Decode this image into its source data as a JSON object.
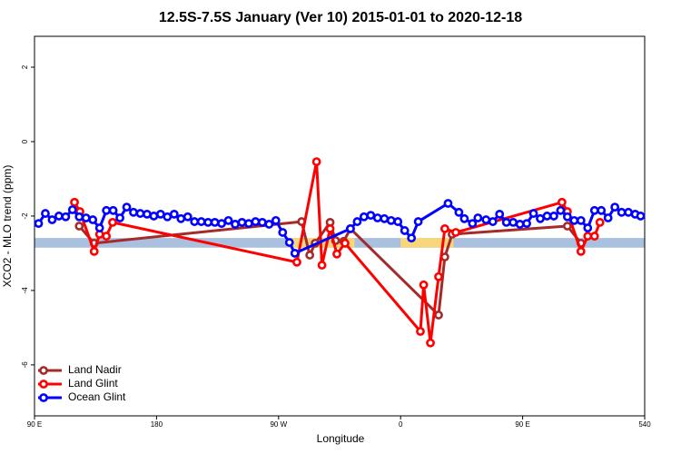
{
  "chart_data": {
    "type": "line",
    "title": "12.5S-7.5S January (Ver 10)   2015-01-01 to 2020-12-18",
    "x_label": "Longitude",
    "y_label": "XCO2 - MLO trend (ppm)",
    "xlim": [
      90,
      540
    ],
    "ylim": [
      -7.37,
      2.83
    ],
    "xticks": [
      {
        "value": 90,
        "label": "90 E"
      },
      180,
      {
        "value": 270,
        "label": "90 W"
      },
      {
        "value": 360,
        "label": "0"
      },
      {
        "value": 450,
        "label": "90 E"
      },
      540
    ],
    "yticks": [
      2,
      0,
      -2,
      -4,
      -6
    ],
    "legend": "bottom-left",
    "band": {
      "ylim": [
        -2.85,
        -2.59
      ],
      "color": "#a9c0de"
    },
    "highlights": {
      "spans": [
        [
          276,
          326
        ],
        [
          360,
          399
        ]
      ],
      "color": "#f7d77a"
    },
    "series": [
      {
        "name": "Land Nadir",
        "color": "#a52a2a",
        "x": [
          123,
          134,
          287,
          293,
          297,
          308,
          312,
          318,
          323,
          388,
          392.6,
          398,
          483,
          493
        ],
        "values": [
          -2.27,
          -2.73,
          -2.15,
          -3.05,
          -2.73,
          -2.17,
          -2.66,
          -2.68,
          -2.34,
          -4.66,
          -3.1,
          -2.49,
          -2.27,
          -2.73
        ]
      },
      {
        "name": "Land Glint",
        "color": "#ff0000",
        "x": [
          119.5,
          123.5,
          134,
          138,
          143,
          147.6,
          283.5,
          298,
          302,
          308,
          313,
          319,
          374.6,
          377,
          382,
          388,
          392.6,
          400.7,
          479,
          483,
          493,
          498,
          503,
          507
        ],
        "values": [
          -1.63,
          -1.88,
          -2.95,
          -2.49,
          -2.54,
          -2.17,
          -3.24,
          -0.54,
          -3.32,
          -2.34,
          -3.02,
          -2.73,
          -5.1,
          -3.85,
          -5.41,
          -3.63,
          -2.34,
          -2.44,
          -1.63,
          -1.88,
          -2.95,
          -2.54,
          -2.54,
          -2.17
        ]
      },
      {
        "name": "Ocean Glint",
        "color": "#0000ff",
        "x": [
          93,
          98,
          103,
          108,
          113,
          118,
          123,
          128,
          133,
          138,
          143,
          148,
          153,
          158,
          163,
          168,
          173,
          178,
          183,
          188,
          193,
          198,
          203,
          208,
          213,
          218,
          223,
          228,
          233,
          238,
          243,
          248,
          253,
          258,
          263,
          268,
          273,
          278,
          282,
          323,
          328,
          333,
          338,
          343,
          348,
          353,
          358,
          363,
          368,
          373,
          395,
          403,
          407,
          413,
          417,
          423,
          428,
          433,
          438,
          443,
          448,
          453,
          458,
          463,
          468,
          473,
          478,
          483,
          488,
          493,
          498,
          503,
          508,
          513,
          518,
          523,
          528,
          533,
          537
        ],
        "values": [
          -2.2,
          -1.93,
          -2.1,
          -2.0,
          -2.02,
          -1.83,
          -2.02,
          -2.05,
          -2.1,
          -2.32,
          -1.85,
          -1.85,
          -2.05,
          -1.76,
          -1.9,
          -1.93,
          -1.95,
          -2.0,
          -1.95,
          -2.02,
          -1.95,
          -2.07,
          -2.02,
          -2.15,
          -2.15,
          -2.17,
          -2.17,
          -2.2,
          -2.12,
          -2.22,
          -2.17,
          -2.2,
          -2.15,
          -2.17,
          -2.22,
          -2.12,
          -2.44,
          -2.71,
          -3.0,
          -2.34,
          -2.15,
          -2.02,
          -1.98,
          -2.05,
          -2.07,
          -2.12,
          -2.15,
          -2.39,
          -2.59,
          -2.15,
          -1.66,
          -1.9,
          -2.07,
          -2.2,
          -2.05,
          -2.1,
          -2.15,
          -1.95,
          -2.17,
          -2.17,
          -2.22,
          -2.2,
          -1.93,
          -2.07,
          -2.0,
          -2.0,
          -1.85,
          -2.02,
          -2.12,
          -2.12,
          -2.32,
          -1.85,
          -1.85,
          -2.05,
          -1.76,
          -1.9,
          -1.9,
          -1.95,
          -2.0
        ]
      }
    ]
  }
}
